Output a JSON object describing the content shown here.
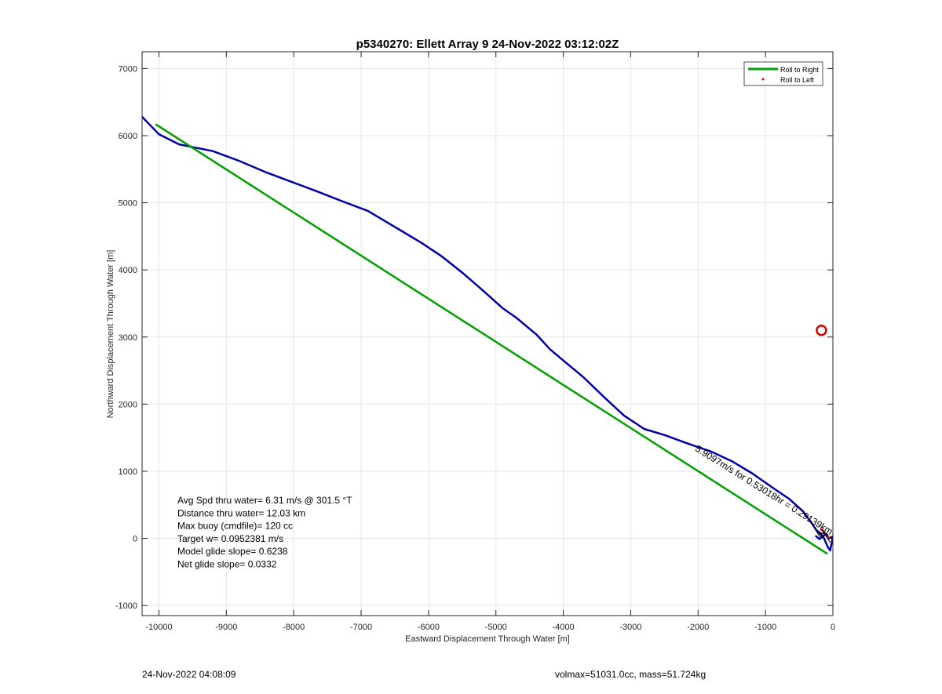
{
  "chart_data": {
    "type": "line",
    "title": "p5340270: Ellett Array 9 24-Nov-2022 03:12:02Z",
    "xlabel": "Eastward Displacement Through Water [m]",
    "ylabel": "Northward Displacement Through Water [m]",
    "xlim": [
      -10250,
      0
    ],
    "ylim": [
      -1150,
      7250
    ],
    "grid": true,
    "xticks": [
      -10000,
      -9000,
      -8000,
      -7000,
      -6000,
      -5000,
      -4000,
      -3000,
      -2000,
      -1000,
      0
    ],
    "yticks": [
      -1000,
      0,
      1000,
      2000,
      3000,
      4000,
      5000,
      6000,
      7000
    ],
    "legend": {
      "placement": "top-right",
      "entries": [
        {
          "label": "Roll to Right",
          "color": "#00a000",
          "style": "line"
        },
        {
          "label": "Roll to Left",
          "color": "#ff0000",
          "style": "dot"
        }
      ]
    },
    "series": [
      {
        "style": "line",
        "color": "#0000aa",
        "x": [
          -10250,
          -10000,
          -9700,
          -9200,
          -8800,
          -8400,
          -8000,
          -7600,
          -7300,
          -6900,
          -6500,
          -6100,
          -5800,
          -5500,
          -5200,
          -4900,
          -4700,
          -4400,
          -4200,
          -4000,
          -3700,
          -3400,
          -3100,
          -2800,
          -2500,
          -2200,
          -1800,
          -1500,
          -1200,
          -900,
          -650,
          -450,
          -330,
          -250,
          -180,
          -130,
          -80,
          -40,
          0,
          -60,
          -110,
          -200,
          -260
        ],
        "y": [
          6280,
          6020,
          5870,
          5770,
          5620,
          5450,
          5300,
          5150,
          5030,
          4880,
          4640,
          4400,
          4200,
          3960,
          3700,
          3430,
          3290,
          3040,
          2820,
          2650,
          2400,
          2110,
          1830,
          1630,
          1540,
          1430,
          1290,
          1150,
          970,
          760,
          590,
          410,
          250,
          130,
          70,
          0,
          -120,
          -180,
          30,
          0,
          60,
          -10,
          40
        ]
      },
      {
        "style": "line",
        "color": "#00a000",
        "x": [
          -10050,
          -80
        ],
        "y": [
          6170,
          -230
        ]
      },
      {
        "style": "dots",
        "color": "#ff0000",
        "x": [
          -60,
          -80,
          -110,
          -140,
          -170
        ],
        "y": [
          10,
          40,
          70,
          100,
          130
        ]
      },
      {
        "style": "line",
        "color": "#000000",
        "x": [
          -280,
          -190,
          -260,
          -120,
          -210,
          -70,
          -160,
          -40
        ],
        "y": [
          160,
          20,
          130,
          -20,
          90,
          50,
          120,
          -60
        ]
      }
    ],
    "markers": [
      {
        "x": -170,
        "y": 3100,
        "shape": "circle",
        "color": "#cc0000"
      }
    ],
    "annotation_rotated": {
      "text": "5.9097m/s for 0.53018hr = 0.29139km",
      "x": -40,
      "y": 50
    },
    "annotation_box": [
      "Avg Spd thru water=  6.31 m/s @ 301.5 °T",
      "Distance thru water= 12.03 km",
      "Max buoy (cmdfile)= 120 cc",
      "Target w= 0.0952381 m/s",
      "Model glide slope= 0.6238",
      "Net glide slope= 0.0332"
    ]
  },
  "footer": {
    "timestamp": "24-Nov-2022 04:08:09",
    "info": "volmax=51031.0cc, mass=51.724kg"
  }
}
